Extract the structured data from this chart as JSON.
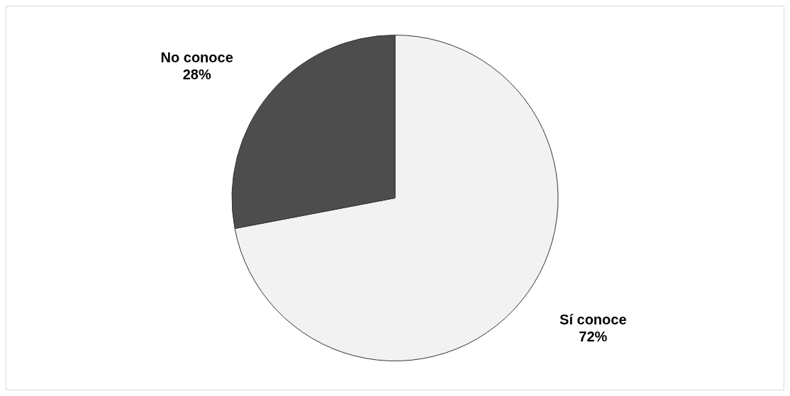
{
  "chart_data": {
    "type": "pie",
    "categories": [
      "Sí conoce",
      "No conoce"
    ],
    "values": [
      72,
      28
    ],
    "colors": [
      "#f2f2f2",
      "#4d4d4d"
    ],
    "value_labels": [
      "72%",
      "28%"
    ]
  }
}
